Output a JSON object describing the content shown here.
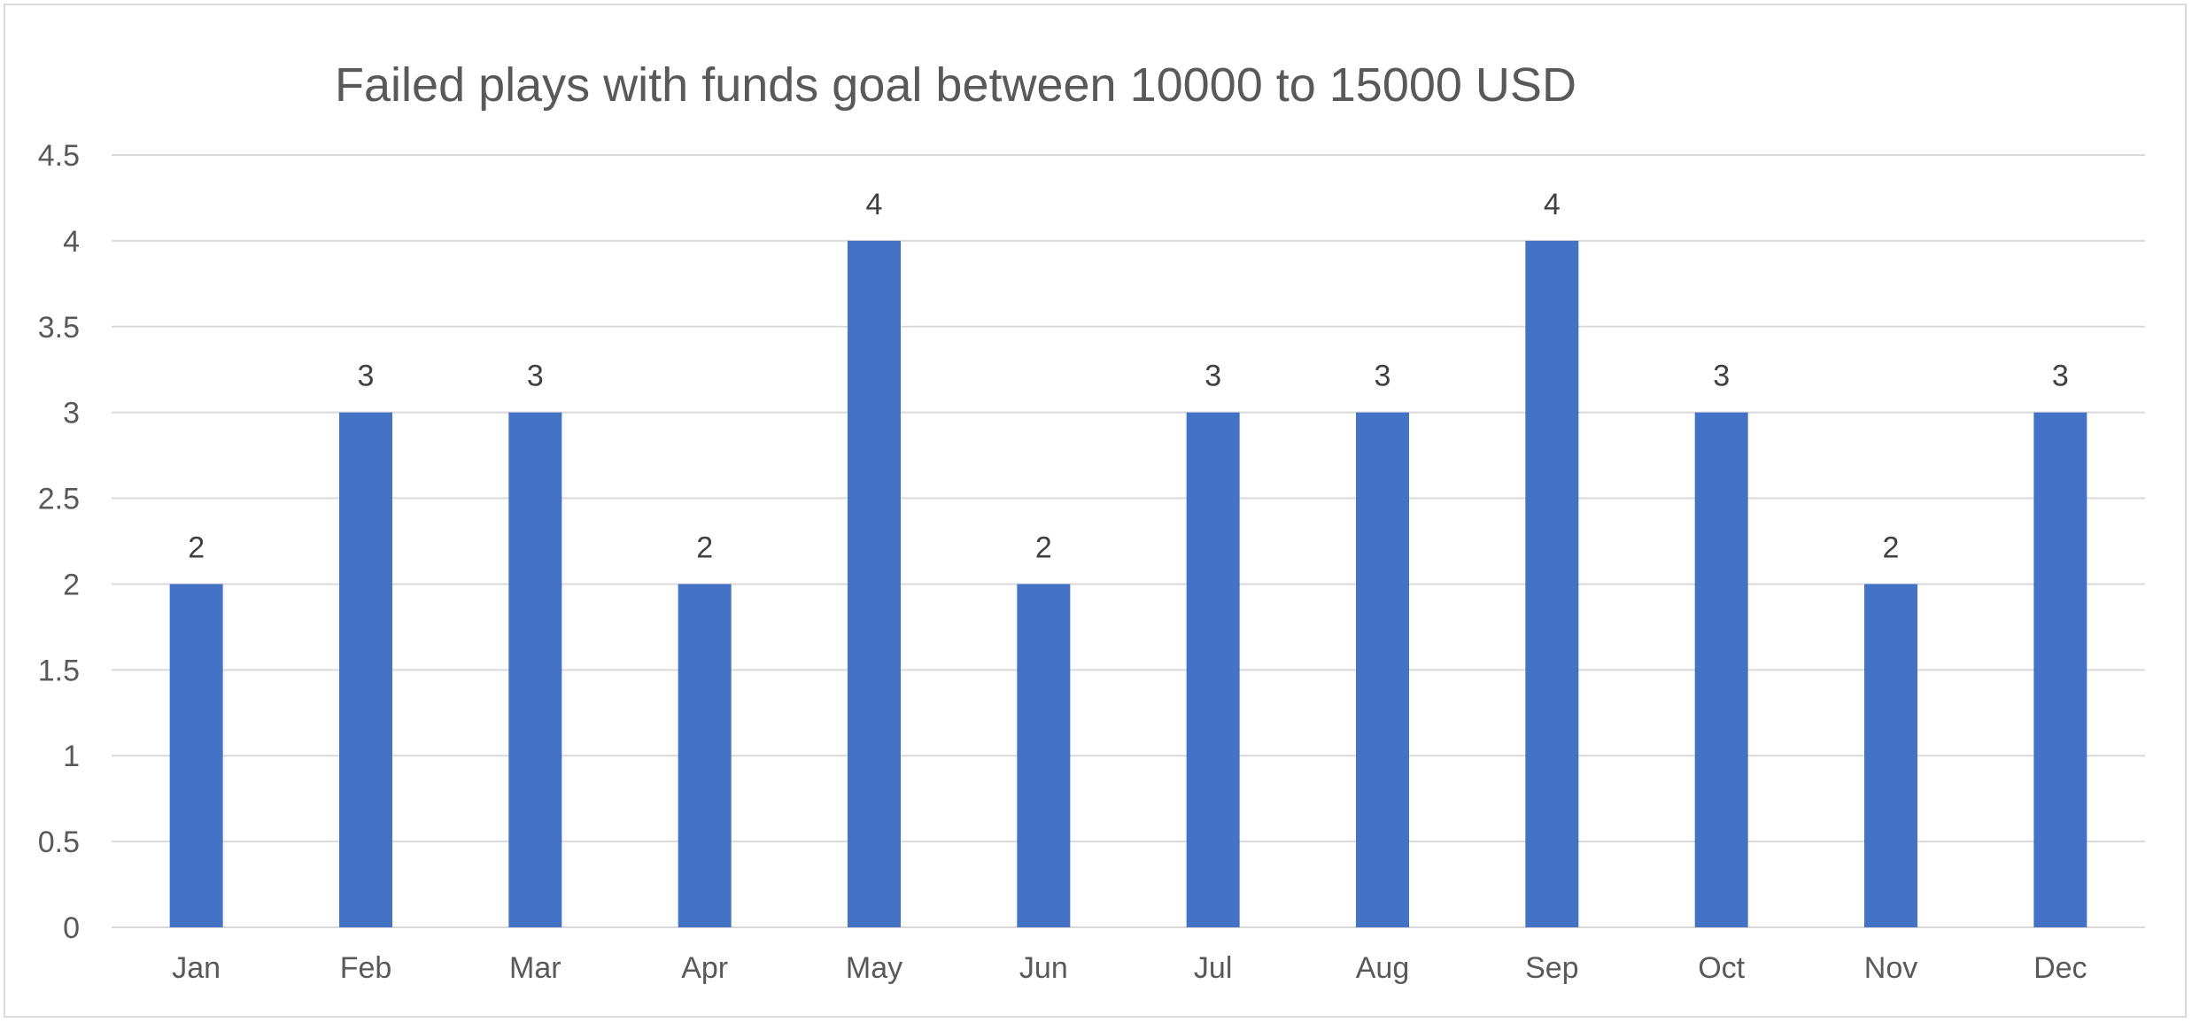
{
  "chart_data": {
    "type": "bar",
    "title": "Failed plays with funds goal between 10000 to 15000 USD",
    "categories": [
      "Jan",
      "Feb",
      "Mar",
      "Apr",
      "May",
      "Jun",
      "Jul",
      "Aug",
      "Sep",
      "Oct",
      "Nov",
      "Dec"
    ],
    "values": [
      2,
      3,
      3,
      2,
      4,
      2,
      3,
      3,
      4,
      3,
      2,
      3
    ],
    "data_labels": [
      "2",
      "3",
      "3",
      "2",
      "4",
      "2",
      "3",
      "3",
      "4",
      "3",
      "2",
      "3"
    ],
    "y_ticks": [
      0,
      0.5,
      1,
      1.5,
      2,
      2.5,
      3,
      3.5,
      4,
      4.5
    ],
    "y_tick_labels": [
      "0",
      "0.5",
      "1",
      "1.5",
      "2",
      "2.5",
      "3",
      "3.5",
      "4",
      "4.5"
    ],
    "ylim": [
      0,
      4.5
    ],
    "grid": true,
    "legend": "none",
    "colors": {
      "bar": "#4472C4",
      "grid": "#d9d9d9",
      "text": "#595959",
      "label": "#404040",
      "border": "#d9d9d9"
    }
  }
}
